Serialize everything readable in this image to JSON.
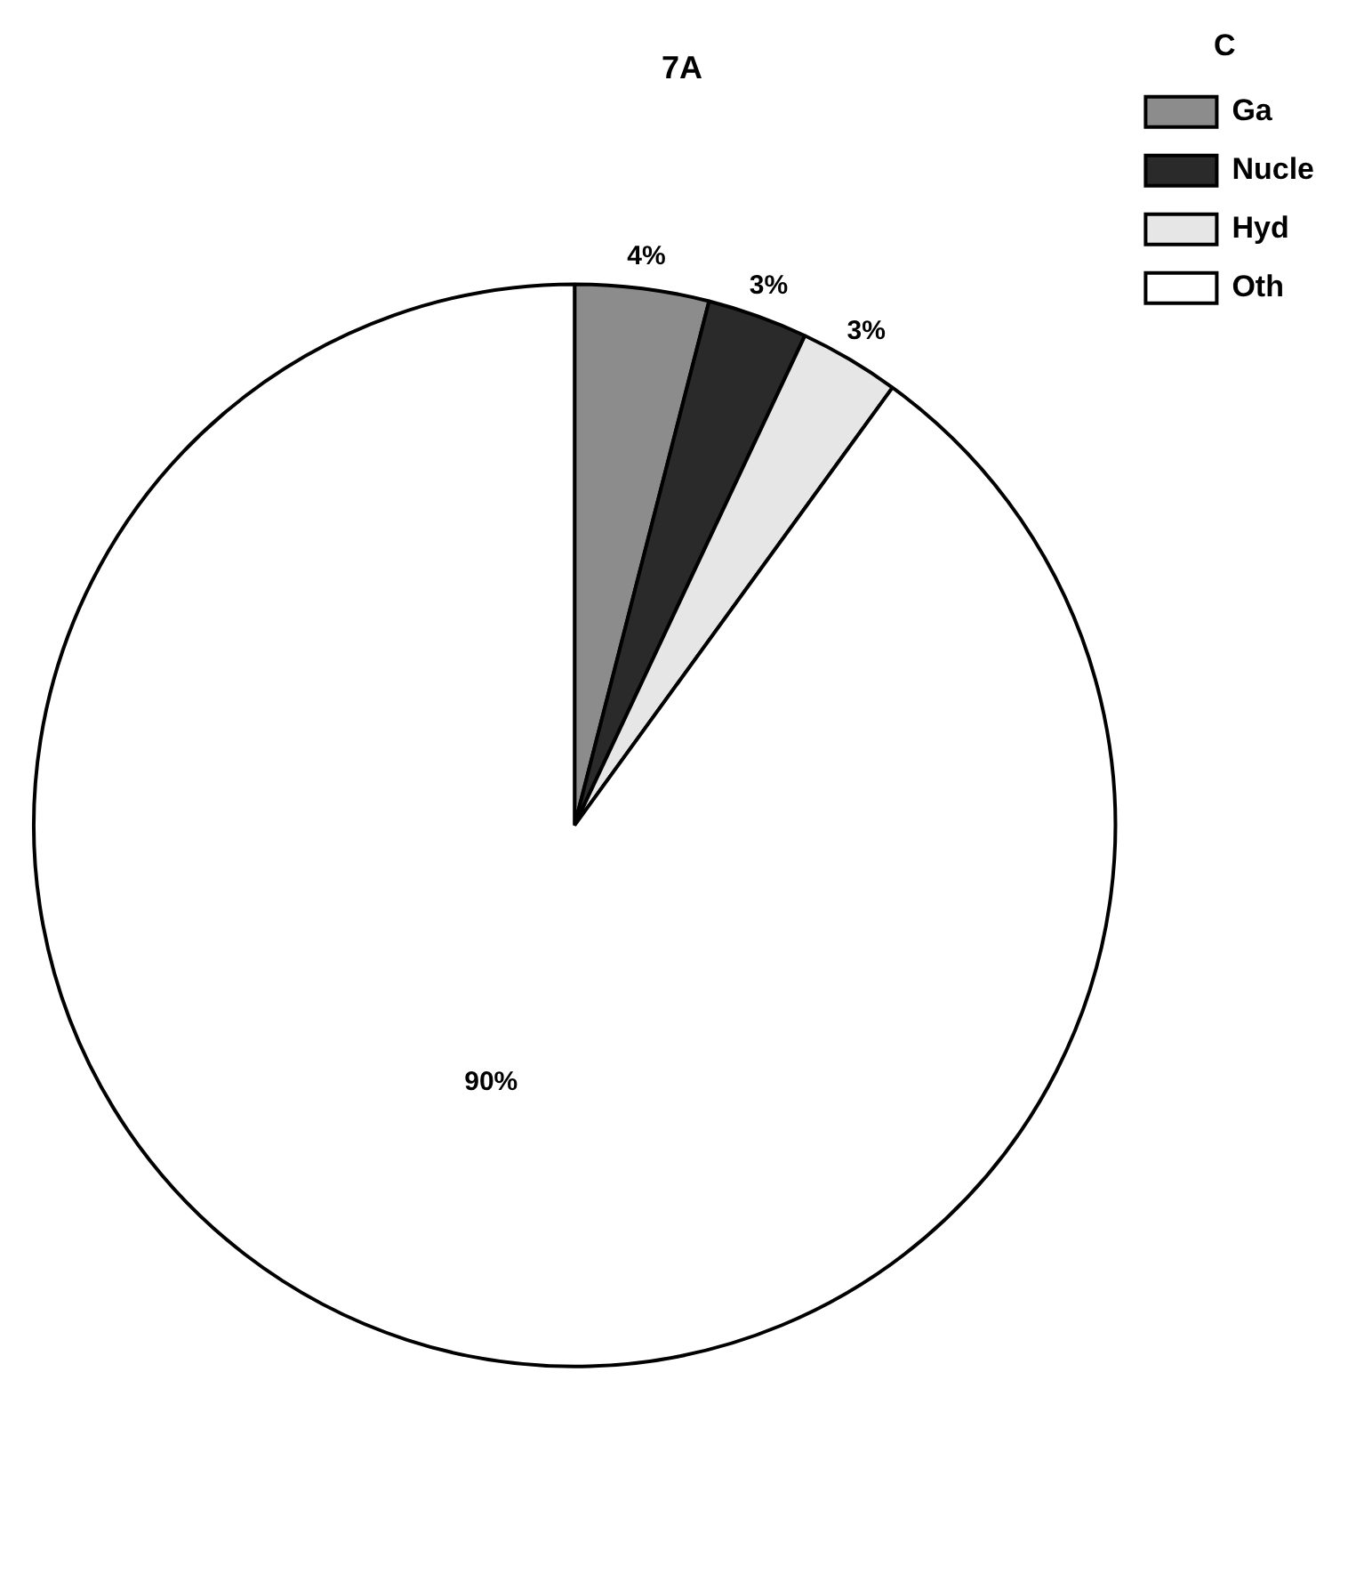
{
  "chart_data": {
    "type": "pie",
    "title": "7A",
    "legend_title": "C",
    "categories": [
      "Ga",
      "Nucle",
      "Hyd",
      "Oth"
    ],
    "values": [
      4,
      3,
      3,
      90
    ],
    "colors": [
      "#8c8c8c",
      "#2a2a2a",
      "#e6e6e6",
      "#ffffff"
    ],
    "value_labels": [
      "4%",
      "3%",
      "3%",
      "90%"
    ],
    "legend": "top right"
  }
}
